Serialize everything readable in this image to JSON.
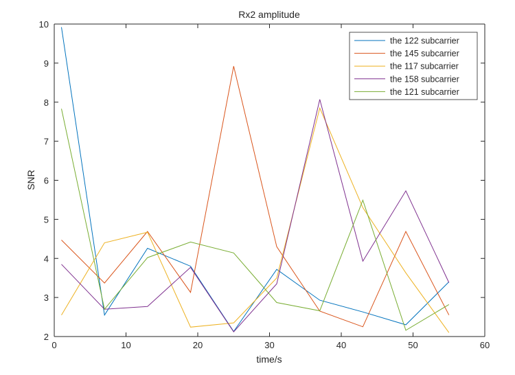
{
  "chart_data": {
    "type": "line",
    "title": "Rx2 amplitude",
    "xlabel": "time/s",
    "ylabel": "SNR",
    "xlim": [
      0,
      60
    ],
    "ylim": [
      2,
      10
    ],
    "x_ticks": [
      "0",
      "10",
      "20",
      "30",
      "40",
      "50",
      "60"
    ],
    "y_ticks": [
      "2",
      "3",
      "4",
      "5",
      "6",
      "7",
      "8",
      "9",
      "10"
    ],
    "grid": false,
    "legend_position": "top-right",
    "x": [
      1,
      7,
      13,
      19,
      25,
      31,
      37,
      43,
      49,
      55
    ],
    "series": [
      {
        "name": "the 122 subcarrier",
        "color": "#0072BD",
        "values": [
          9.92,
          2.55,
          4.26,
          3.8,
          2.13,
          3.72,
          2.93,
          2.63,
          2.3,
          3.4
        ]
      },
      {
        "name": "the 145 subcarrier",
        "color": "#D95319",
        "values": [
          4.47,
          3.37,
          4.69,
          3.13,
          8.92,
          4.3,
          2.65,
          2.25,
          4.69,
          2.55
        ]
      },
      {
        "name": "the 117 subcarrier",
        "color": "#EDB120",
        "values": [
          2.55,
          4.4,
          4.67,
          2.24,
          2.35,
          3.5,
          7.85,
          5.3,
          3.63,
          2.1
        ]
      },
      {
        "name": "the 158 subcarrier",
        "color": "#7E2F8E",
        "values": [
          3.85,
          2.7,
          2.77,
          3.77,
          2.12,
          3.35,
          8.07,
          3.93,
          5.73,
          3.38
        ]
      },
      {
        "name": "the 121 subcarrier",
        "color": "#77AC30",
        "values": [
          7.83,
          2.7,
          4.02,
          4.42,
          4.14,
          2.87,
          2.66,
          5.49,
          2.16,
          2.82
        ]
      }
    ]
  }
}
